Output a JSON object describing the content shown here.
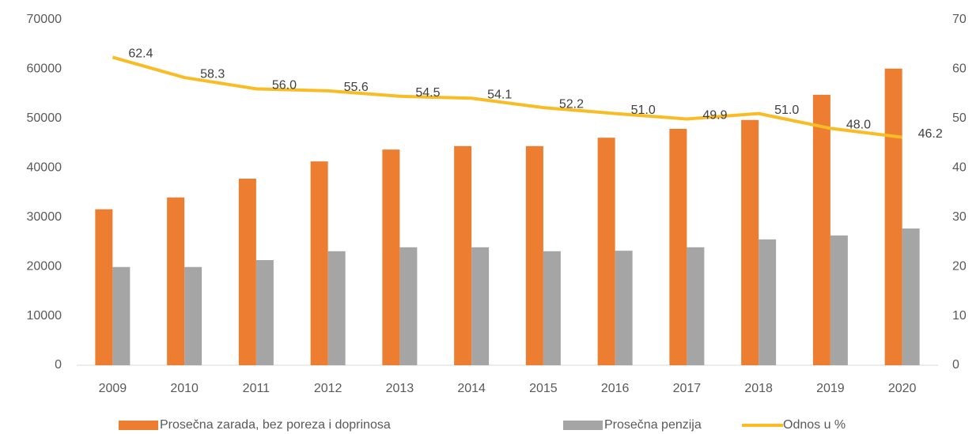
{
  "chart_data": {
    "type": "bar_line",
    "categories": [
      "2009",
      "2010",
      "2011",
      "2012",
      "2013",
      "2014",
      "2015",
      "2016",
      "2017",
      "2018",
      "2019",
      "2020"
    ],
    "series": [
      {
        "name": "Prosečna zarada, bez poreza i doprinosa",
        "color": "#ED7D31",
        "type": "bar",
        "values": [
          31600,
          34000,
          37800,
          41300,
          43700,
          44400,
          44400,
          46100,
          47900,
          49700,
          54800,
          60100
        ]
      },
      {
        "name": "Prosečna penzija",
        "color": "#A5A5A5",
        "type": "bar",
        "values": [
          19900,
          19900,
          21300,
          23100,
          23900,
          23900,
          23100,
          23200,
          23900,
          25500,
          26300,
          27700
        ]
      },
      {
        "name": "Odnos u %",
        "color": "#F9BC25",
        "type": "line",
        "axis": "y2",
        "values": [
          62.4,
          58.3,
          56.0,
          55.6,
          54.5,
          54.1,
          52.2,
          51.0,
          49.9,
          51.0,
          48.0,
          46.2
        ],
        "value_labels": [
          "62.4",
          "58.3",
          "56.0",
          "55.6",
          "54.5",
          "54.1",
          "52.2",
          "51.0",
          "49.9",
          "51.0",
          "48.0",
          "46.2"
        ]
      }
    ],
    "ylim": [
      0,
      70000
    ],
    "yticks": [
      0,
      10000,
      20000,
      30000,
      40000,
      50000,
      60000,
      70000
    ],
    "y2lim": [
      0,
      70
    ],
    "y2ticks": [
      0,
      10,
      20,
      30,
      40,
      50,
      60,
      70
    ],
    "grid": false,
    "legend": "bottom"
  }
}
